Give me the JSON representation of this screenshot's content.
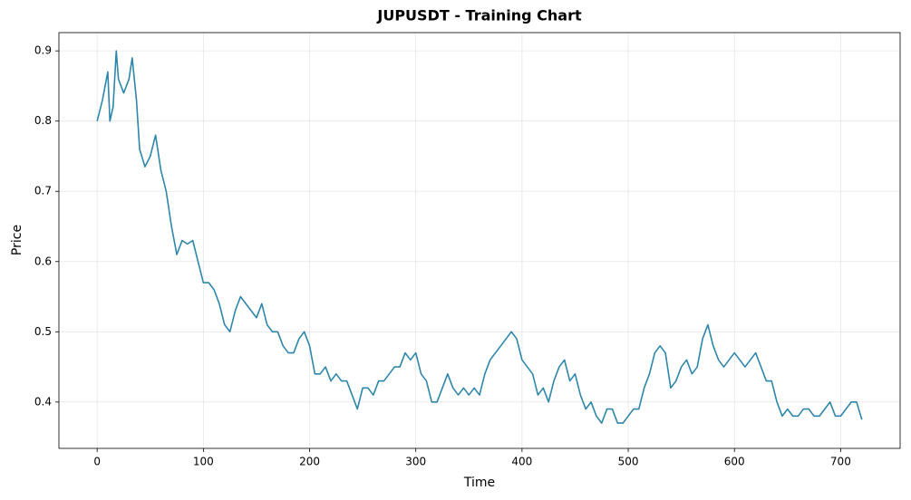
{
  "chart_data": {
    "type": "line",
    "title": "JUPUSDT - Training Chart",
    "x_label": "Time",
    "y_label": "Price",
    "x": [
      0,
      5,
      10,
      12,
      15,
      18,
      20,
      25,
      30,
      33,
      35,
      37,
      40,
      45,
      50,
      55,
      60,
      65,
      70,
      75,
      80,
      85,
      90,
      95,
      100,
      105,
      110,
      115,
      120,
      125,
      130,
      135,
      140,
      145,
      150,
      155,
      160,
      165,
      170,
      175,
      180,
      185,
      190,
      195,
      200,
      205,
      210,
      215,
      220,
      225,
      230,
      235,
      240,
      245,
      250,
      255,
      260,
      265,
      270,
      275,
      280,
      285,
      290,
      295,
      300,
      305,
      310,
      315,
      320,
      325,
      330,
      335,
      340,
      345,
      350,
      355,
      360,
      365,
      370,
      375,
      380,
      385,
      390,
      395,
      400,
      405,
      410,
      415,
      420,
      425,
      430,
      435,
      440,
      445,
      450,
      455,
      460,
      465,
      470,
      475,
      480,
      485,
      490,
      495,
      500,
      505,
      510,
      515,
      520,
      525,
      530,
      535,
      540,
      545,
      550,
      555,
      560,
      565,
      570,
      575,
      580,
      585,
      590,
      595,
      600,
      605,
      610,
      615,
      620,
      625,
      630,
      635,
      640,
      645,
      650,
      655,
      660,
      665,
      670,
      675,
      680,
      685,
      690,
      695,
      700,
      705,
      710,
      715,
      720
    ],
    "values": [
      0.8,
      0.83,
      0.87,
      0.8,
      0.82,
      0.9,
      0.86,
      0.84,
      0.86,
      0.89,
      0.86,
      0.83,
      0.76,
      0.735,
      0.75,
      0.78,
      0.73,
      0.7,
      0.65,
      0.61,
      0.63,
      0.625,
      0.63,
      0.6,
      0.57,
      0.57,
      0.56,
      0.54,
      0.51,
      0.5,
      0.53,
      0.55,
      0.54,
      0.53,
      0.52,
      0.54,
      0.51,
      0.5,
      0.5,
      0.48,
      0.47,
      0.47,
      0.49,
      0.5,
      0.48,
      0.44,
      0.44,
      0.45,
      0.43,
      0.44,
      0.43,
      0.43,
      0.41,
      0.39,
      0.42,
      0.42,
      0.41,
      0.43,
      0.43,
      0.44,
      0.45,
      0.45,
      0.47,
      0.46,
      0.47,
      0.44,
      0.43,
      0.4,
      0.4,
      0.42,
      0.44,
      0.42,
      0.41,
      0.42,
      0.41,
      0.42,
      0.41,
      0.44,
      0.46,
      0.47,
      0.48,
      0.49,
      0.5,
      0.49,
      0.46,
      0.45,
      0.44,
      0.41,
      0.42,
      0.4,
      0.43,
      0.45,
      0.46,
      0.43,
      0.44,
      0.41,
      0.39,
      0.4,
      0.38,
      0.37,
      0.39,
      0.39,
      0.37,
      0.37,
      0.38,
      0.39,
      0.39,
      0.42,
      0.44,
      0.47,
      0.48,
      0.47,
      0.42,
      0.43,
      0.45,
      0.46,
      0.44,
      0.45,
      0.49,
      0.51,
      0.48,
      0.46,
      0.45,
      0.46,
      0.47,
      0.46,
      0.45,
      0.46,
      0.47,
      0.45,
      0.43,
      0.43,
      0.4,
      0.38,
      0.39,
      0.38,
      0.38,
      0.39,
      0.39,
      0.38,
      0.38,
      0.39,
      0.4,
      0.38,
      0.38,
      0.39,
      0.4,
      0.4,
      0.375
    ],
    "color": "#2e86ab",
    "xlim": [
      -36,
      756
    ],
    "xticks": [
      0,
      100,
      200,
      300,
      400,
      500,
      600,
      700
    ],
    "ylim": [
      0.334,
      0.926
    ],
    "yticks": [
      0.4,
      0.5,
      0.6,
      0.7,
      0.8,
      0.9
    ],
    "grid": true
  }
}
